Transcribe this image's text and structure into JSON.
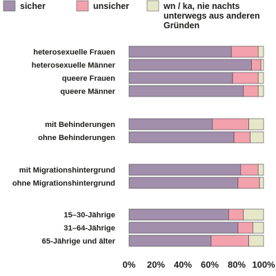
{
  "chart_data": {
    "type": "bar",
    "orientation": "horizontal",
    "stacked": true,
    "title": "",
    "xlabel": "",
    "ylabel": "",
    "xlim": [
      0,
      100
    ],
    "x_ticks": [
      "0%",
      "20%",
      "40%",
      "60%",
      "80%",
      "100%"
    ],
    "grid": false,
    "legend": {
      "position": "top",
      "entries": [
        {
          "label": "sicher",
          "color": "#a28fac"
        },
        {
          "label": "unsicher",
          "color": "#f2a1ad"
        },
        {
          "label": "wn / ka, nie nachts unterwegs aus anderen Gründen",
          "lines": [
            "wn / ka, nie nachts",
            "unterwegs aus anderen",
            "Gründen"
          ],
          "color": "#e6e7c9"
        }
      ]
    },
    "categories": [
      "heterosexuelle Frauen",
      "heterosexuelle Männer",
      "queere Frauen",
      "queere Männer",
      "mit Behinderungen",
      "ohne Behinderungen",
      "mit Migrationshintergrund",
      "ohne Migrationshintergrund",
      "15–30-Jährige",
      "31–64-Jährige",
      "65-Jährige und älter"
    ],
    "groups": [
      [
        0,
        1,
        2,
        3
      ],
      [
        4,
        5
      ],
      [
        6,
        7
      ],
      [
        8,
        9,
        10
      ]
    ],
    "series": [
      {
        "name": "sicher",
        "color": "#a28fac",
        "values": [
          76,
          91,
          77,
          85,
          62,
          78,
          83,
          81,
          74,
          81,
          61
        ]
      },
      {
        "name": "unsicher",
        "color": "#f2a1ad",
        "values": [
          20,
          7,
          19,
          11,
          27,
          12,
          13,
          16,
          11,
          11,
          28
        ]
      },
      {
        "name": "wn / ka, nie nachts unterwegs aus anderen Gründen",
        "color": "#e6e7c9",
        "values": [
          4,
          2,
          4,
          4,
          11,
          10,
          4,
          3,
          15,
          8,
          11
        ]
      }
    ]
  }
}
